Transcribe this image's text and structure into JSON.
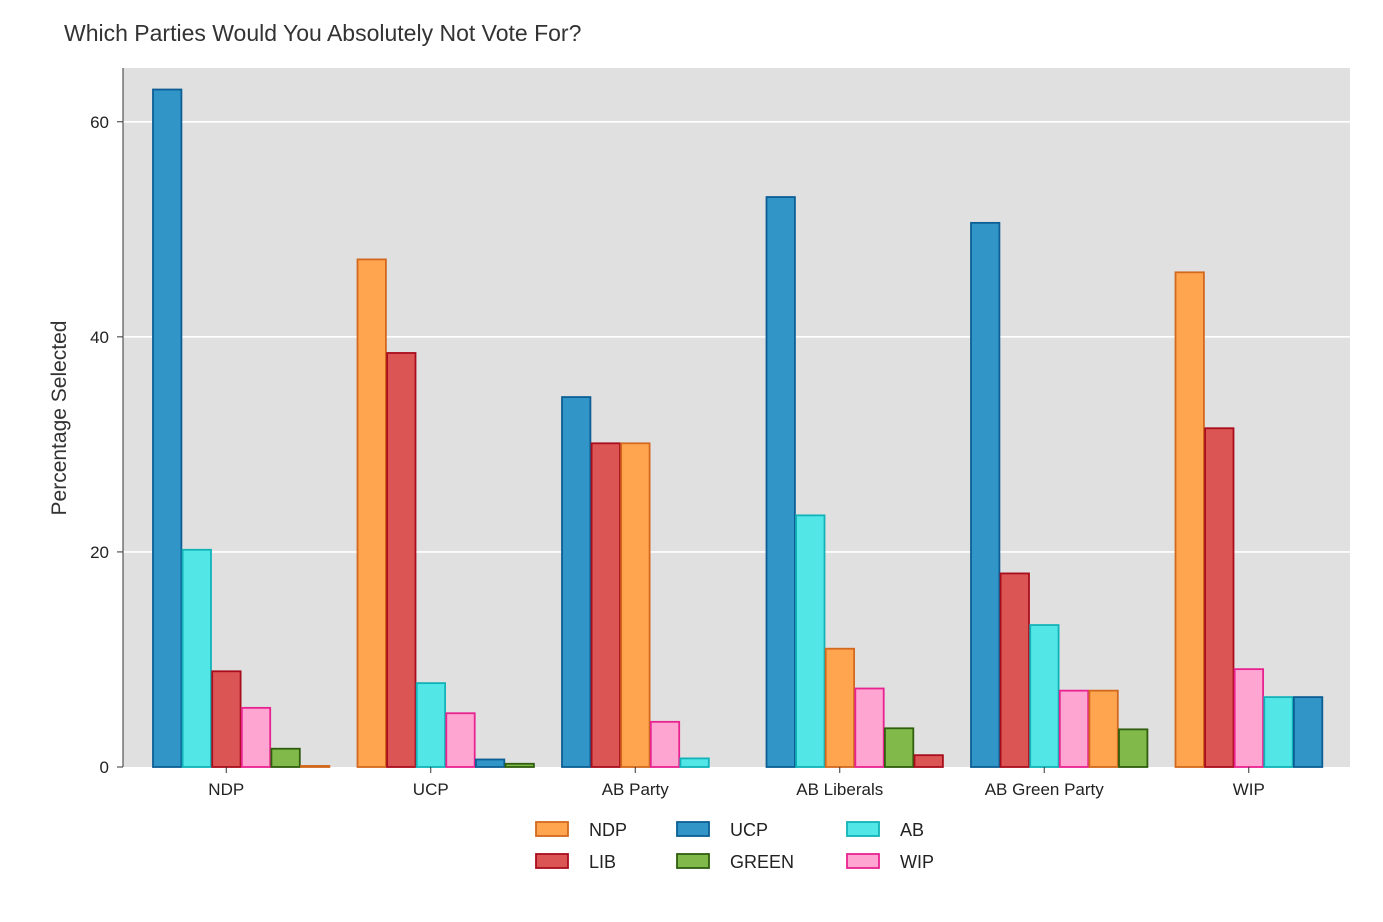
{
  "chart_data": {
    "type": "bar",
    "title": "Which Parties Would You Absolutely Not Vote For?",
    "xlabel": "",
    "ylabel": "Percentage Selected",
    "ylim": [
      0,
      65
    ],
    "yticks": [
      0,
      20,
      40,
      60
    ],
    "grid": true,
    "legend_position": "bottom",
    "categories": [
      "NDP",
      "UCP",
      "AB Party",
      "AB Liberals",
      "AB Green Party",
      "WIP"
    ],
    "legend": [
      {
        "name": "NDP",
        "fill": "#ffa54f",
        "stroke": "#d2691e"
      },
      {
        "name": "UCP",
        "fill": "#3195c7",
        "stroke": "#0c5e94"
      },
      {
        "name": "AB",
        "fill": "#52e6e6",
        "stroke": "#11b3b8"
      },
      {
        "name": "LIB",
        "fill": "#dc5555",
        "stroke": "#a90d1c"
      },
      {
        "name": "GREEN",
        "fill": "#82b94b",
        "stroke": "#2f5e0e"
      },
      {
        "name": "WIP",
        "fill": "#ffa5d2",
        "stroke": "#e8238f"
      }
    ],
    "groups": [
      {
        "category": "NDP",
        "bars": [
          {
            "series": "UCP",
            "value": 63.0
          },
          {
            "series": "AB",
            "value": 20.2
          },
          {
            "series": "LIB",
            "value": 8.9
          },
          {
            "series": "WIP",
            "value": 5.5
          },
          {
            "series": "GREEN",
            "value": 1.7
          },
          {
            "series": "NDP",
            "value": 0.1
          }
        ]
      },
      {
        "category": "UCP",
        "bars": [
          {
            "series": "NDP",
            "value": 47.2
          },
          {
            "series": "LIB",
            "value": 38.5
          },
          {
            "series": "AB",
            "value": 7.8
          },
          {
            "series": "WIP",
            "value": 5.0
          },
          {
            "series": "UCP",
            "value": 0.7
          },
          {
            "series": "GREEN",
            "value": 0.3
          }
        ]
      },
      {
        "category": "AB Party",
        "bars": [
          {
            "series": "UCP",
            "value": 34.4
          },
          {
            "series": "LIB",
            "value": 30.1
          },
          {
            "series": "NDP",
            "value": 30.1
          },
          {
            "series": "WIP",
            "value": 4.2
          },
          {
            "series": "AB",
            "value": 0.8
          }
        ]
      },
      {
        "category": "AB Liberals",
        "bars": [
          {
            "series": "UCP",
            "value": 53.0
          },
          {
            "series": "AB",
            "value": 23.4
          },
          {
            "series": "NDP",
            "value": 11.0
          },
          {
            "series": "WIP",
            "value": 7.3
          },
          {
            "series": "GREEN",
            "value": 3.6
          },
          {
            "series": "LIB",
            "value": 1.1
          }
        ]
      },
      {
        "category": "AB Green Party",
        "bars": [
          {
            "series": "UCP",
            "value": 50.6
          },
          {
            "series": "LIB",
            "value": 18.0
          },
          {
            "series": "AB",
            "value": 13.2
          },
          {
            "series": "WIP",
            "value": 7.1
          },
          {
            "series": "NDP",
            "value": 7.1
          },
          {
            "series": "GREEN",
            "value": 3.5
          }
        ]
      },
      {
        "category": "WIP",
        "bars": [
          {
            "series": "NDP",
            "value": 46.0
          },
          {
            "series": "LIB",
            "value": 31.5
          },
          {
            "series": "WIP",
            "value": 9.1
          },
          {
            "series": "AB",
            "value": 6.5
          },
          {
            "series": "UCP",
            "value": 6.5
          }
        ]
      }
    ]
  },
  "colors": {
    "panel_background": "#e0e0e0",
    "gridline": "#ffffff"
  }
}
